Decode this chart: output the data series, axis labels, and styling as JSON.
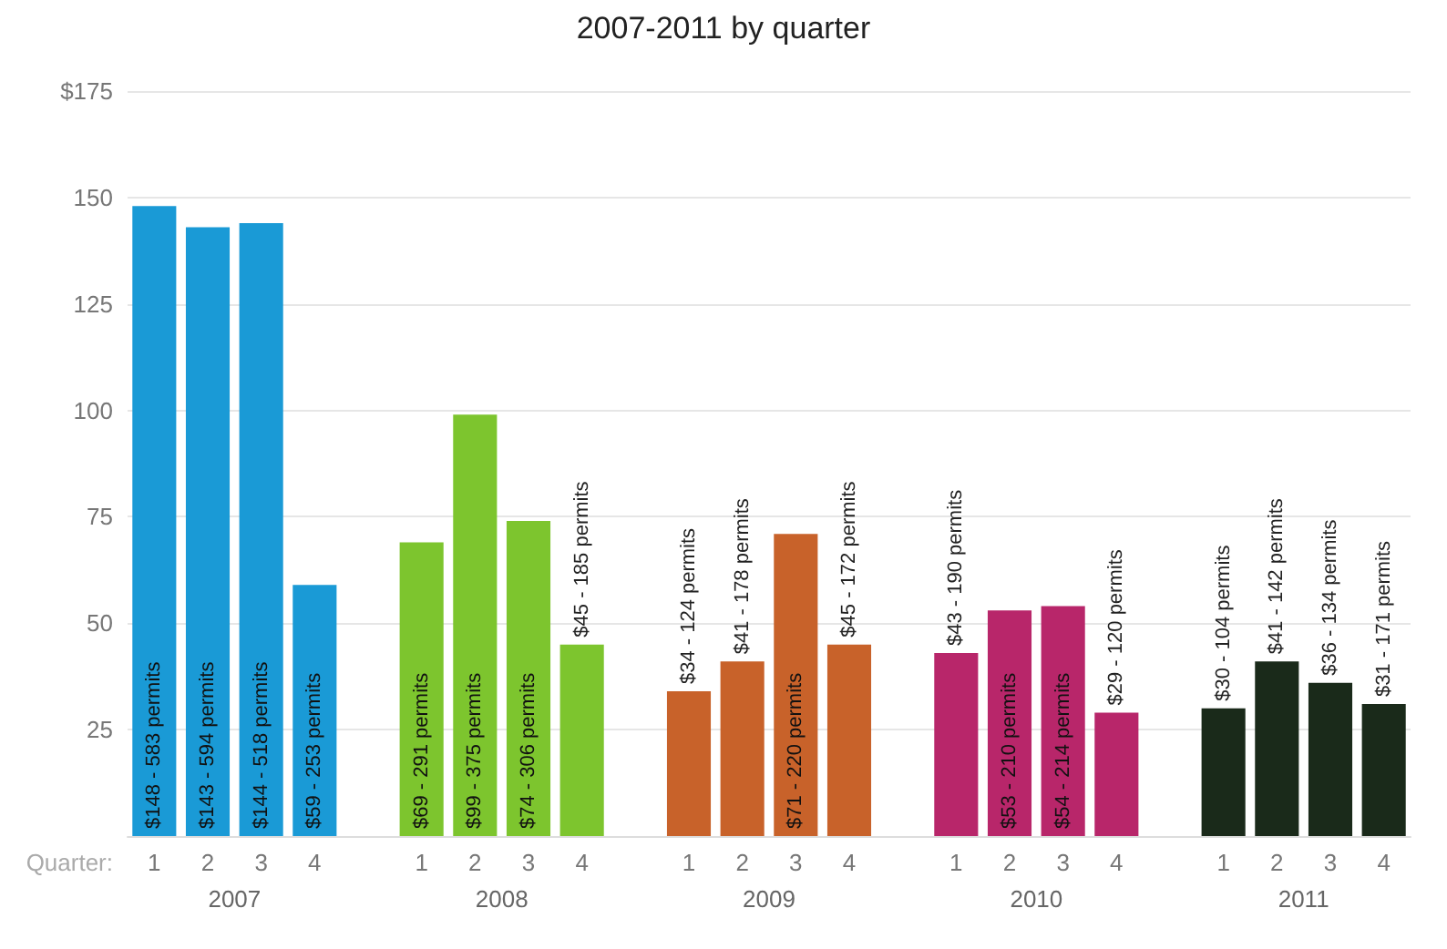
{
  "chart_data": {
    "type": "bar",
    "title": "2007-2011 by quarter",
    "xlabel": "Quarter:",
    "categories": [
      "1",
      "2",
      "3",
      "4",
      null,
      "1",
      "2",
      "3",
      "4",
      null,
      "1",
      "2",
      "3",
      "4",
      null,
      "1",
      "2",
      "3",
      "4",
      null,
      "1",
      "2",
      "3",
      "4"
    ],
    "series": [
      {
        "name": "2007",
        "color": "#1a9ad6",
        "values": [
          148,
          143,
          144,
          59,
          null,
          null,
          null,
          null,
          null,
          null,
          null,
          null,
          null,
          null,
          null,
          null,
          null,
          null,
          null,
          null,
          null,
          null,
          null,
          null
        ],
        "value_labels": [
          "$148 - 583 permits",
          "$143 - 594 permits",
          "$144 - 518 permits",
          "$59 - 253 permits",
          null,
          null,
          null,
          null,
          null,
          null,
          null,
          null,
          null,
          null,
          null,
          null,
          null,
          null,
          null,
          null,
          null,
          null,
          null,
          null
        ]
      },
      {
        "name": "2008",
        "color": "#7dc52e",
        "values": [
          null,
          null,
          null,
          null,
          null,
          69,
          99,
          74,
          45,
          null,
          null,
          null,
          null,
          null,
          null,
          null,
          null,
          null,
          null,
          null,
          null,
          null,
          null,
          null
        ],
        "value_labels": [
          null,
          null,
          null,
          null,
          null,
          "$69 - 291 permits",
          "$99 - 375 permits",
          "$74 - 306 permits",
          "$45 - 185 permits",
          null,
          null,
          null,
          null,
          null,
          null,
          null,
          null,
          null,
          null,
          null,
          null,
          null,
          null,
          null
        ]
      },
      {
        "name": "2009",
        "color": "#c8622a",
        "values": [
          null,
          null,
          null,
          null,
          null,
          null,
          null,
          null,
          null,
          null,
          34,
          41,
          71,
          45,
          null,
          null,
          null,
          null,
          null,
          null,
          null,
          null,
          null,
          null
        ],
        "value_labels": [
          null,
          null,
          null,
          null,
          null,
          null,
          null,
          null,
          null,
          null,
          "$34 - 124 permits",
          "$41 - 178 permits",
          "$71 - 220 permits",
          "$45 - 172 permits",
          null,
          null,
          null,
          null,
          null,
          null,
          null,
          null,
          null,
          null
        ]
      },
      {
        "name": "2010",
        "color": "#b8266a",
        "values": [
          null,
          null,
          null,
          null,
          null,
          null,
          null,
          null,
          null,
          null,
          null,
          null,
          null,
          null,
          null,
          43,
          53,
          54,
          29,
          null,
          null,
          null,
          null,
          null
        ],
        "value_labels": [
          null,
          null,
          null,
          null,
          null,
          null,
          null,
          null,
          null,
          null,
          null,
          null,
          null,
          null,
          null,
          "$43 - 190 permits",
          "$53 - 210 permits",
          "$54 - 214 permits",
          "$29 - 120 permits",
          null,
          null,
          null,
          null,
          null
        ]
      },
      {
        "name": "2011",
        "color": "#1a2a1a",
        "values": [
          null,
          null,
          null,
          null,
          null,
          null,
          null,
          null,
          null,
          null,
          null,
          null,
          null,
          null,
          null,
          null,
          null,
          null,
          null,
          null,
          30,
          41,
          36,
          31
        ],
        "value_labels": [
          null,
          null,
          null,
          null,
          null,
          null,
          null,
          null,
          null,
          null,
          null,
          null,
          null,
          null,
          null,
          null,
          null,
          null,
          null,
          null,
          "$30 - 104 permits",
          "$41 - 142 permits",
          "$36 - 134 permits",
          "$31 - 171 permits"
        ]
      }
    ],
    "ylim": [
      0,
      175
    ],
    "yticks": [
      {
        "value": 0,
        "label": null
      },
      25,
      50,
      75,
      100,
      125,
      150,
      {
        "value": 175,
        "label": "$175"
      }
    ],
    "grid": "y",
    "legend": false
  }
}
